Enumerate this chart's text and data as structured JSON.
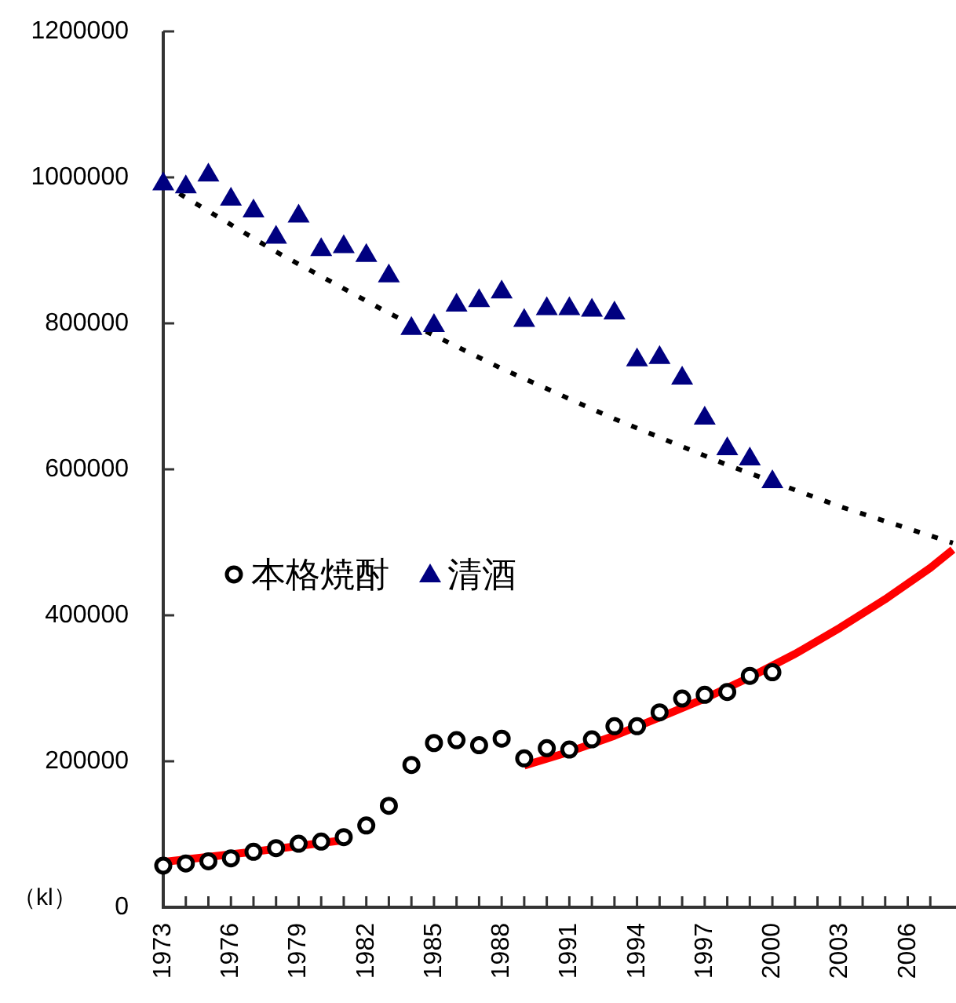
{
  "chart_data": {
    "type": "scatter",
    "ylabel": "（kl）",
    "xlim": [
      1973,
      2008
    ],
    "xticks": [
      {
        "value": 1973,
        "label": "1973"
      },
      {
        "value": 1974,
        "label": null
      },
      {
        "value": 1975,
        "label": null
      },
      {
        "value": 1976,
        "label": "1976"
      },
      {
        "value": 1977,
        "label": null
      },
      {
        "value": 1978,
        "label": null
      },
      {
        "value": 1979,
        "label": "1979"
      },
      {
        "value": 1980,
        "label": null
      },
      {
        "value": 1981,
        "label": null
      },
      {
        "value": 1982,
        "label": "1982"
      },
      {
        "value": 1983,
        "label": null
      },
      {
        "value": 1984,
        "label": null
      },
      {
        "value": 1985,
        "label": "1985"
      },
      {
        "value": 1986,
        "label": null
      },
      {
        "value": 1987,
        "label": null
      },
      {
        "value": 1988,
        "label": "1988"
      },
      {
        "value": 1989,
        "label": null
      },
      {
        "value": 1990,
        "label": null
      },
      {
        "value": 1991,
        "label": "1991"
      },
      {
        "value": 1992,
        "label": null
      },
      {
        "value": 1993,
        "label": null
      },
      {
        "value": 1994,
        "label": "1994"
      },
      {
        "value": 1995,
        "label": null
      },
      {
        "value": 1996,
        "label": null
      },
      {
        "value": 1997,
        "label": "1997"
      },
      {
        "value": 1998,
        "label": null
      },
      {
        "value": 1999,
        "label": null
      },
      {
        "value": 2000,
        "label": "2000"
      },
      {
        "value": 2001,
        "label": null
      },
      {
        "value": 2002,
        "label": null
      },
      {
        "value": 2003,
        "label": "2003"
      },
      {
        "value": 2004,
        "label": null
      },
      {
        "value": 2005,
        "label": null
      },
      {
        "value": 2006,
        "label": "2006"
      },
      {
        "value": 2007,
        "label": null
      }
    ],
    "ylim": [
      0,
      1200000
    ],
    "yticks": [
      0,
      200000,
      400000,
      600000,
      800000,
      1000000,
      1200000
    ],
    "grid": false,
    "legend": "left",
    "x": [
      1973,
      1974,
      1975,
      1976,
      1977,
      1978,
      1979,
      1980,
      1981,
      1982,
      1983,
      1984,
      1985,
      1986,
      1987,
      1988,
      1989,
      1990,
      1991,
      1992,
      1993,
      1994,
      1995,
      1996,
      1997,
      1998,
      1999,
      2000
    ],
    "series": [
      {
        "type": "line",
        "color": "#000000",
        "line_style": "dotted",
        "marker": "none",
        "x": [
          1973,
          1978,
          1983,
          1988,
          1993,
          1998,
          2003,
          2008
        ],
        "values": [
          991000,
          898000,
          814000,
          738000,
          669000,
          606000,
          549000,
          499000
        ]
      },
      {
        "type": "line",
        "color": "#ff0000",
        "line_style": "solid",
        "marker": "none",
        "x": [
          1973,
          1977,
          1981
        ],
        "values": [
          62000,
          76000,
          92000
        ]
      },
      {
        "type": "line",
        "color": "#ff0000",
        "line_style": "solid",
        "marker": "none",
        "x": [
          1989,
          1991,
          1993,
          1995,
          1997,
          1999,
          2001,
          2003,
          2005,
          2007,
          2008
        ],
        "values": [
          194000,
          213000,
          235000,
          260000,
          286000,
          315000,
          347000,
          383000,
          422000,
          465000,
          490000
        ]
      },
      {
        "name": "本格焼酎",
        "type": "scatter",
        "marker": "circle",
        "color": "#000000",
        "values": [
          57000,
          60000,
          63000,
          67000,
          76000,
          81000,
          87000,
          90000,
          96000,
          112000,
          139000,
          195000,
          225000,
          229000,
          222000,
          231000,
          204000,
          218000,
          216000,
          230000,
          248000,
          248000,
          267000,
          286000,
          291000,
          295000,
          317000,
          322000
        ]
      },
      {
        "name": "清酒",
        "type": "scatter",
        "marker": "triangle",
        "color": "#000080",
        "values": [
          993000,
          989000,
          1005000,
          972000,
          956000,
          920000,
          949000,
          903000,
          907000,
          895000,
          867000,
          795000,
          799000,
          827000,
          833000,
          845000,
          806000,
          822000,
          822000,
          820000,
          816000,
          752000,
          755000,
          727000,
          672000,
          630000,
          616000,
          585000
        ]
      }
    ]
  }
}
